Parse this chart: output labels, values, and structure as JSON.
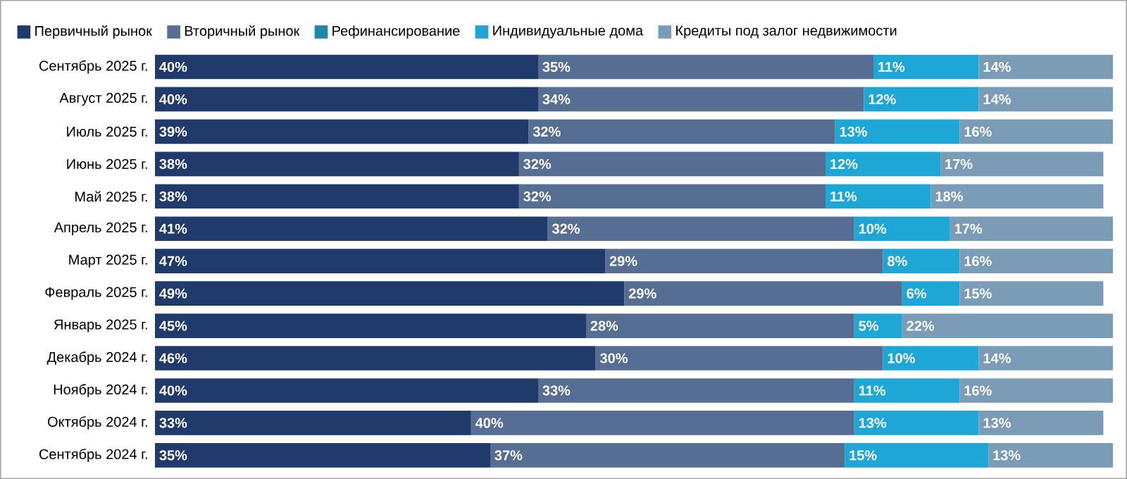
{
  "chart_data": {
    "type": "bar",
    "orientation": "horizontal",
    "stacked": true,
    "legend": "top left",
    "categories": [
      "Сентябрь 2025 г.",
      "Август 2025 г.",
      "Июль 2025 г.",
      "Июнь 2025 г.",
      "Май 2025 г.",
      "Апрель 2025 г.",
      "Март 2025 г.",
      "Февраль 2025 г.",
      "Январь 2025 г.",
      "Декабрь 2024 г.",
      "Ноябрь 2024 г.",
      "Октябрь 2024 г.",
      "Сентябрь 2024 г."
    ],
    "series": [
      {
        "name": "Первичный рынок",
        "color": "#1f3a6b",
        "values": [
          40,
          40,
          39,
          38,
          38,
          41,
          47,
          49,
          45,
          46,
          40,
          33,
          35
        ],
        "value_labels": [
          "40%",
          "40%",
          "39%",
          "38%",
          "38%",
          "41%",
          "47%",
          "49%",
          "45%",
          "46%",
          "40%",
          "33%",
          "35%"
        ]
      },
      {
        "name": "Вторичный рынок",
        "color": "#566e91",
        "values": [
          35,
          34,
          32,
          32,
          32,
          32,
          29,
          29,
          28,
          30,
          33,
          40,
          37
        ],
        "value_labels": [
          "35%",
          "34%",
          "32%",
          "32%",
          "32%",
          "32%",
          "29%",
          "29%",
          "28%",
          "30%",
          "33%",
          "40%",
          "37%"
        ]
      },
      {
        "name": "Рефинансирование",
        "color": "#1f87a8",
        "values": [
          null,
          null,
          null,
          null,
          null,
          null,
          null,
          null,
          null,
          null,
          null,
          null,
          null
        ]
      },
      {
        "name": "Индивидуальные дома",
        "color": "#1ea7d6",
        "values": [
          11,
          12,
          13,
          12,
          11,
          10,
          8,
          6,
          5,
          10,
          11,
          13,
          15
        ],
        "value_labels": [
          "11%",
          "12%",
          "13%",
          "12%",
          "11%",
          "10%",
          "8%",
          "6%",
          "5%",
          "10%",
          "11%",
          "13%",
          "15%"
        ]
      },
      {
        "name": "Кредиты под залог недвижимости",
        "color": "#7b9cb6",
        "values": [
          14,
          14,
          16,
          17,
          18,
          17,
          16,
          15,
          22,
          14,
          16,
          13,
          13
        ],
        "value_labels": [
          "14%",
          "14%",
          "16%",
          "17%",
          "18%",
          "17%",
          "16%",
          "15%",
          "22%",
          "14%",
          "16%",
          "13%",
          "13%"
        ]
      }
    ]
  }
}
